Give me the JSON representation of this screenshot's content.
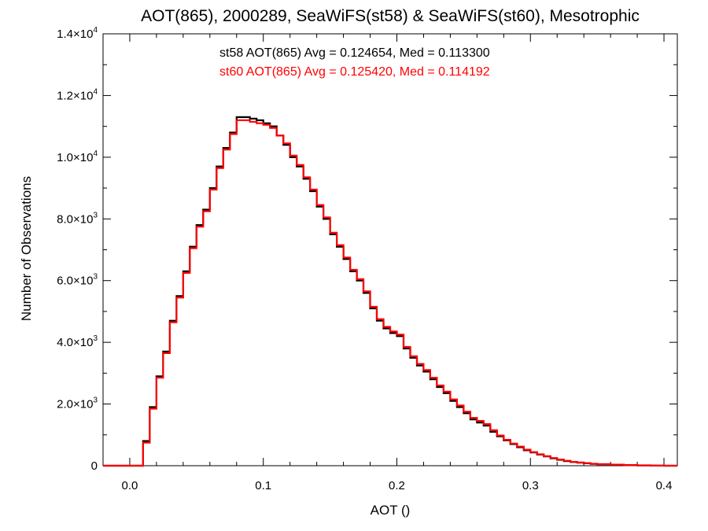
{
  "chart_data": {
    "type": "line",
    "title": "AOT(865), 2000289, SeaWiFS(st58) & SeaWiFS(st60), Mesotrophic",
    "xlabel": "AOT ()",
    "ylabel": "Number of Observations",
    "xlim": [
      -0.02,
      0.41
    ],
    "ylim": [
      0,
      14000
    ],
    "grid": false,
    "x_ticks": [
      {
        "value": 0.0,
        "label": "0.0"
      },
      {
        "value": 0.1,
        "label": "0.1"
      },
      {
        "value": 0.2,
        "label": "0.2"
      },
      {
        "value": 0.3,
        "label": "0.3"
      },
      {
        "value": 0.4,
        "label": "0.4"
      }
    ],
    "y_ticks": [
      {
        "value": 0,
        "mant": "0",
        "exp": ""
      },
      {
        "value": 2000,
        "mant": "2.0×10",
        "exp": "3"
      },
      {
        "value": 4000,
        "mant": "4.0×10",
        "exp": "3"
      },
      {
        "value": 6000,
        "mant": "6.0×10",
        "exp": "3"
      },
      {
        "value": 8000,
        "mant": "8.0×10",
        "exp": "3"
      },
      {
        "value": 10000,
        "mant": "1.0×10",
        "exp": "4"
      },
      {
        "value": 12000,
        "mant": "1.2×10",
        "exp": "4"
      },
      {
        "value": 14000,
        "mant": "1.4×10",
        "exp": "4"
      }
    ],
    "annotations": [
      {
        "text": "st58 AOT(865) Avg = 0.124654, Med = 0.113300",
        "color": "#000000"
      },
      {
        "text": "st60 AOT(865) Avg = 0.125420, Med = 0.114192",
        "color": "#ff0000"
      }
    ],
    "series": [
      {
        "color": "#000000",
        "x": [
          -0.02,
          0.005,
          0.01,
          0.015,
          0.02,
          0.025,
          0.03,
          0.035,
          0.04,
          0.045,
          0.05,
          0.055,
          0.06,
          0.065,
          0.07,
          0.075,
          0.08,
          0.085,
          0.09,
          0.095,
          0.1,
          0.105,
          0.11,
          0.115,
          0.12,
          0.125,
          0.13,
          0.135,
          0.14,
          0.145,
          0.15,
          0.155,
          0.16,
          0.165,
          0.17,
          0.175,
          0.18,
          0.185,
          0.19,
          0.195,
          0.2,
          0.205,
          0.21,
          0.215,
          0.22,
          0.225,
          0.23,
          0.235,
          0.24,
          0.245,
          0.25,
          0.255,
          0.26,
          0.265,
          0.27,
          0.275,
          0.28,
          0.285,
          0.29,
          0.295,
          0.3,
          0.305,
          0.31,
          0.315,
          0.32,
          0.325,
          0.33,
          0.335,
          0.34,
          0.345,
          0.35,
          0.36,
          0.37,
          0.38,
          0.39,
          0.4,
          0.41
        ],
        "y": [
          0,
          0,
          800,
          1900,
          2900,
          3700,
          4700,
          5500,
          6300,
          7100,
          7800,
          8300,
          9000,
          9700,
          10300,
          10800,
          11300,
          11300,
          11250,
          11200,
          11100,
          11000,
          10700,
          10400,
          10000,
          9700,
          9300,
          8900,
          8400,
          8000,
          7500,
          7100,
          6700,
          6300,
          6000,
          5600,
          5100,
          4700,
          4450,
          4300,
          4200,
          3800,
          3500,
          3250,
          3050,
          2800,
          2550,
          2350,
          2100,
          1900,
          1700,
          1500,
          1400,
          1300,
          1100,
          950,
          820,
          700,
          600,
          500,
          430,
          360,
          300,
          240,
          190,
          150,
          120,
          100,
          80,
          60,
          45,
          30,
          20,
          10,
          5,
          0,
          0
        ]
      },
      {
        "color": "#ff0000",
        "x": [
          -0.02,
          0.005,
          0.01,
          0.015,
          0.02,
          0.025,
          0.03,
          0.035,
          0.04,
          0.045,
          0.05,
          0.055,
          0.06,
          0.065,
          0.07,
          0.075,
          0.08,
          0.085,
          0.09,
          0.095,
          0.1,
          0.105,
          0.11,
          0.115,
          0.12,
          0.125,
          0.13,
          0.135,
          0.14,
          0.145,
          0.15,
          0.155,
          0.16,
          0.165,
          0.17,
          0.175,
          0.18,
          0.185,
          0.19,
          0.195,
          0.2,
          0.205,
          0.21,
          0.215,
          0.22,
          0.225,
          0.23,
          0.235,
          0.24,
          0.245,
          0.25,
          0.255,
          0.26,
          0.265,
          0.27,
          0.275,
          0.28,
          0.285,
          0.29,
          0.295,
          0.3,
          0.305,
          0.31,
          0.315,
          0.32,
          0.325,
          0.33,
          0.335,
          0.34,
          0.345,
          0.35,
          0.36,
          0.37,
          0.38,
          0.39,
          0.4,
          0.41
        ],
        "y": [
          0,
          0,
          750,
          1850,
          2850,
          3650,
          4650,
          5450,
          6250,
          7050,
          7750,
          8250,
          8950,
          9650,
          10250,
          10750,
          11200,
          11200,
          11150,
          11100,
          11050,
          10950,
          10700,
          10450,
          10050,
          9750,
          9350,
          8950,
          8450,
          8050,
          7550,
          7150,
          6750,
          6350,
          6050,
          5650,
          5150,
          4750,
          4500,
          4350,
          4250,
          3850,
          3550,
          3300,
          3100,
          2850,
          2600,
          2400,
          2150,
          1950,
          1750,
          1550,
          1450,
          1350,
          1150,
          980,
          840,
          720,
          620,
          520,
          440,
          370,
          310,
          250,
          200,
          160,
          125,
          105,
          85,
          65,
          50,
          35,
          22,
          12,
          6,
          0,
          0
        ]
      }
    ]
  }
}
